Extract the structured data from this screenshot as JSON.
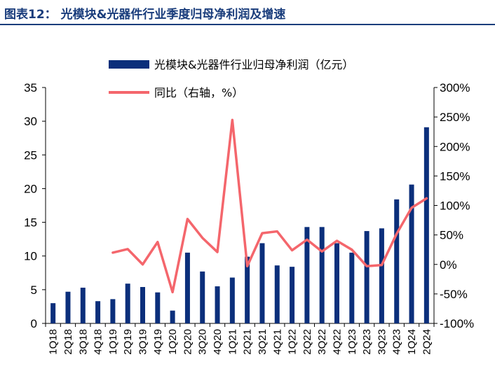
{
  "title": "图表12： 光模块&光器件行业季度归母净利润及增速",
  "colors": {
    "bar": "#0b2f7b",
    "line": "#f4666c",
    "title": "#1a3d7c",
    "axis": "#000000"
  },
  "chart_data": {
    "type": "bar",
    "categories": [
      "1Q18",
      "2Q18",
      "3Q18",
      "4Q18",
      "1Q19",
      "2Q19",
      "3Q19",
      "4Q19",
      "1Q20",
      "2Q20",
      "3Q20",
      "4Q20",
      "1Q21",
      "2Q21",
      "3Q21",
      "4Q21",
      "1Q22",
      "2Q22",
      "3Q22",
      "4Q22",
      "1Q23",
      "2Q23",
      "3Q23",
      "4Q23",
      "1Q24",
      "2Q24"
    ],
    "y_left": {
      "ylim": [
        0,
        35
      ],
      "ticks": [
        "0",
        "5",
        "10",
        "15",
        "20",
        "25",
        "30",
        "35"
      ]
    },
    "y_right": {
      "ylim": [
        -100,
        300
      ],
      "ticks": [
        "-100%",
        "-50%",
        "0%",
        "50%",
        "100%",
        "150%",
        "200%",
        "250%",
        "300%"
      ]
    },
    "series": [
      {
        "name": "光模块&光器件行业归母净利润（亿元）",
        "type": "bar",
        "axis": "left",
        "values": [
          3.0,
          4.7,
          5.3,
          3.3,
          3.6,
          5.9,
          5.4,
          4.6,
          1.9,
          10.5,
          7.7,
          5.5,
          6.8,
          9.9,
          11.9,
          8.6,
          8.4,
          14.3,
          14.3,
          11.9,
          10.5,
          13.7,
          14.1,
          18.4,
          20.6,
          29.1
        ]
      },
      {
        "name": "同比（右轴，%）",
        "type": "line",
        "axis": "right",
        "values": [
          null,
          null,
          null,
          null,
          20,
          26,
          0,
          38,
          -47,
          77,
          45,
          21,
          245,
          -3,
          53,
          56,
          24,
          42,
          22,
          40,
          25,
          -3,
          -1,
          52,
          96,
          112
        ]
      }
    ],
    "legend": "top-center"
  }
}
